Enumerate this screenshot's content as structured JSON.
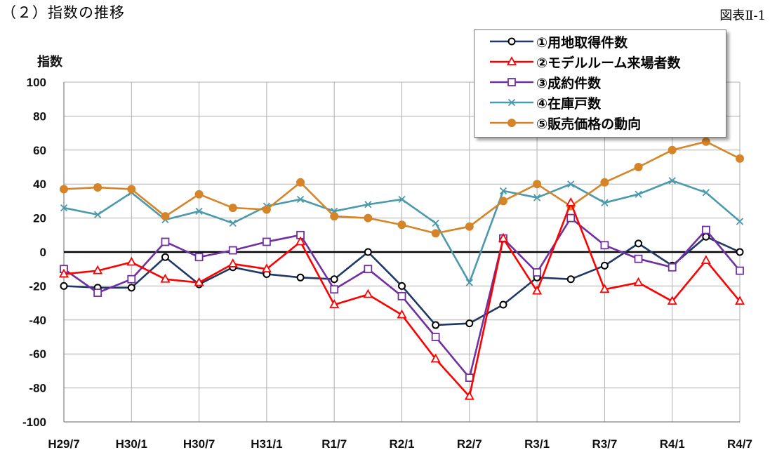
{
  "heading": "（２）指数の推移",
  "figure_no": "図表Ⅱ-1",
  "chart_data": {
    "type": "line",
    "ylabel": "指数",
    "xlabel": "",
    "ylim": [
      -100,
      100
    ],
    "yticks": [
      100,
      80,
      60,
      40,
      20,
      0,
      -20,
      -40,
      -60,
      -80,
      -100
    ],
    "grid": true,
    "legend_position": "top-right",
    "x_tick_labels": [
      "H29/7",
      "H30/1",
      "H30/7",
      "H31/1",
      "R1/7",
      "R2/1",
      "R2/7",
      "R3/1",
      "R3/7",
      "R4/1",
      "R4/7"
    ],
    "series": [
      {
        "name": "①用地取得件数",
        "color": "#1f3864",
        "marker": "circle",
        "values": [
          -20,
          -21,
          -21,
          -3,
          -19,
          -9,
          -13,
          -15,
          -16,
          0,
          -20,
          -43,
          -42,
          -31,
          -15,
          -16,
          -8,
          5,
          -8,
          9,
          0
        ]
      },
      {
        "name": "②モデルルーム来場者数",
        "color": "#ff0000",
        "marker": "triangle",
        "values": [
          -13,
          -11,
          -6,
          -16,
          -18,
          -7,
          -10,
          6,
          -31,
          -25,
          -37,
          -63,
          -85,
          8,
          -23,
          29,
          -22,
          -18,
          -29,
          -5,
          -29
        ]
      },
      {
        "name": "③成約件数",
        "color": "#7030a0",
        "marker": "square",
        "values": [
          -10,
          -24,
          -16,
          6,
          -3,
          1,
          6,
          10,
          -22,
          -10,
          -26,
          -50,
          -74,
          8,
          -12,
          20,
          4,
          -4,
          -9,
          13,
          -11
        ]
      },
      {
        "name": "④在庫戸数",
        "color": "#4a9aac",
        "marker": "x",
        "values": [
          26,
          22,
          35,
          19,
          24,
          17,
          27,
          31,
          24,
          28,
          31,
          17,
          -18,
          36,
          32,
          40,
          29,
          34,
          42,
          35,
          18
        ]
      },
      {
        "name": "⑤販売価格の動向",
        "color": "#d68428",
        "marker": "dot",
        "values": [
          37,
          38,
          37,
          21,
          34,
          26,
          25,
          41,
          21,
          20,
          16,
          11,
          15,
          30,
          40,
          27,
          41,
          50,
          60,
          65,
          55
        ]
      }
    ]
  }
}
